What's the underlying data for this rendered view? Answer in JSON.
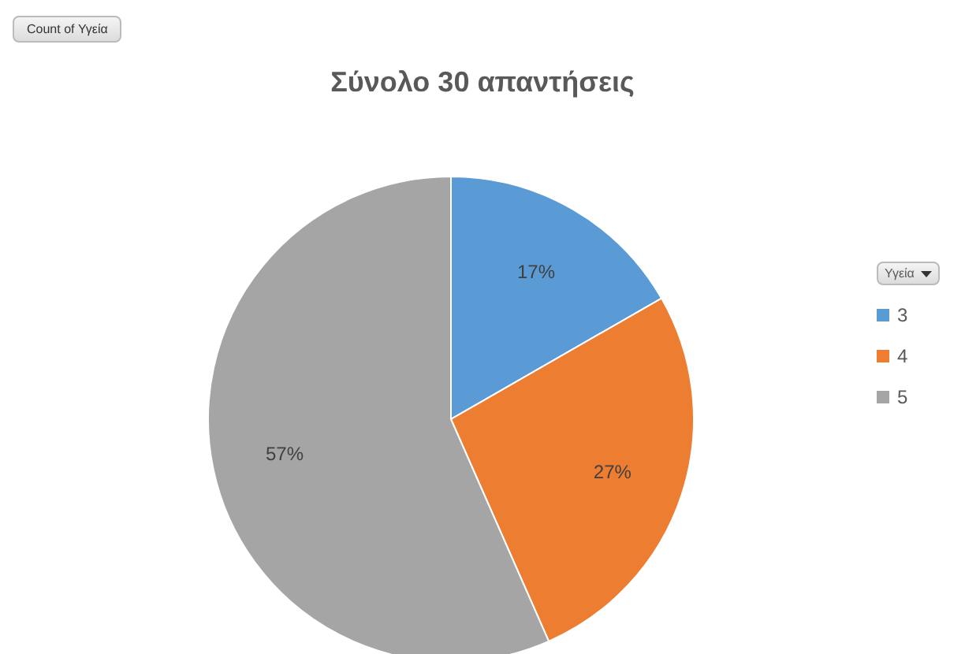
{
  "chart_data": {
    "type": "pie",
    "title": "Σύνολο 30 απαντήσεις",
    "legend_title": "Υγεία",
    "annotations": [
      "Count of Υγεία"
    ],
    "categories": [
      "3",
      "4",
      "5"
    ],
    "values": [
      16.7,
      26.7,
      56.6
    ],
    "colors": [
      "#5b9bd5",
      "#ed7d31",
      "#a5a5a5"
    ],
    "value_labels": [
      "17%",
      "27%",
      "57%"
    ],
    "legend": "right"
  }
}
